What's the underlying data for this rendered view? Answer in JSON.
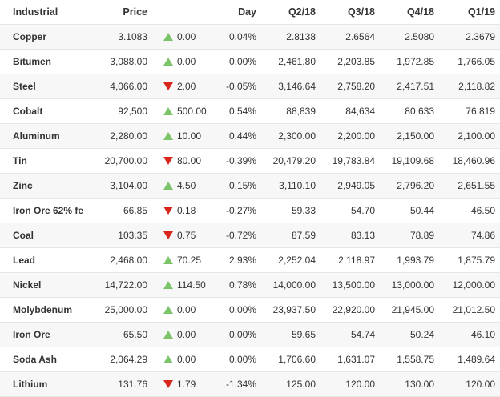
{
  "colors": {
    "up": "#7cc46a",
    "down": "#d9261c",
    "stripe": "#f7f7f7"
  },
  "headers": {
    "name": "Industrial",
    "price": "Price",
    "change": "",
    "day": "Day",
    "q1": "Q2/18",
    "q2": "Q3/18",
    "q3": "Q4/18",
    "q4": "Q1/19"
  },
  "rows": [
    {
      "name": "Copper",
      "price": "3.1083",
      "dir": "up",
      "change": "0.00",
      "day": "0.04%",
      "q1": "2.8138",
      "q2": "2.6564",
      "q3": "2.5080",
      "q4": "2.3679"
    },
    {
      "name": "Bitumen",
      "price": "3,088.00",
      "dir": "up",
      "change": "0.00",
      "day": "0.00%",
      "q1": "2,461.80",
      "q2": "2,203.85",
      "q3": "1,972.85",
      "q4": "1,766.05"
    },
    {
      "name": "Steel",
      "price": "4,066.00",
      "dir": "down",
      "change": "2.00",
      "day": "-0.05%",
      "q1": "3,146.64",
      "q2": "2,758.20",
      "q3": "2,417.51",
      "q4": "2,118.82"
    },
    {
      "name": "Cobalt",
      "price": "92,500",
      "dir": "up",
      "change": "500.00",
      "day": "0.54%",
      "q1": "88,839",
      "q2": "84,634",
      "q3": "80,633",
      "q4": "76,819"
    },
    {
      "name": "Aluminum",
      "price": "2,280.00",
      "dir": "up",
      "change": "10.00",
      "day": "0.44%",
      "q1": "2,300.00",
      "q2": "2,200.00",
      "q3": "2,150.00",
      "q4": "2,100.00"
    },
    {
      "name": "Tin",
      "price": "20,700.00",
      "dir": "down",
      "change": "80.00",
      "day": "-0.39%",
      "q1": "20,479.20",
      "q2": "19,783.84",
      "q3": "19,109.68",
      "q4": "18,460.96"
    },
    {
      "name": "Zinc",
      "price": "3,104.00",
      "dir": "up",
      "change": "4.50",
      "day": "0.15%",
      "q1": "3,110.10",
      "q2": "2,949.05",
      "q3": "2,796.20",
      "q4": "2,651.55"
    },
    {
      "name": "Iron Ore 62% fe",
      "price": "66.85",
      "dir": "down",
      "change": "0.18",
      "day": "-0.27%",
      "q1": "59.33",
      "q2": "54.70",
      "q3": "50.44",
      "q4": "46.50"
    },
    {
      "name": "Coal",
      "price": "103.35",
      "dir": "down",
      "change": "0.75",
      "day": "-0.72%",
      "q1": "87.59",
      "q2": "83.13",
      "q3": "78.89",
      "q4": "74.86"
    },
    {
      "name": "Lead",
      "price": "2,468.00",
      "dir": "up",
      "change": "70.25",
      "day": "2.93%",
      "q1": "2,252.04",
      "q2": "2,118.97",
      "q3": "1,993.79",
      "q4": "1,875.79"
    },
    {
      "name": "Nickel",
      "price": "14,722.00",
      "dir": "up",
      "change": "114.50",
      "day": "0.78%",
      "q1": "14,000.00",
      "q2": "13,500.00",
      "q3": "13,000.00",
      "q4": "12,000.00"
    },
    {
      "name": "Molybdenum",
      "price": "25,000.00",
      "dir": "up",
      "change": "0.00",
      "day": "0.00%",
      "q1": "23,937.50",
      "q2": "22,920.00",
      "q3": "21,945.00",
      "q4": "21,012.50"
    },
    {
      "name": "Iron Ore",
      "price": "65.50",
      "dir": "up",
      "change": "0.00",
      "day": "0.00%",
      "q1": "59.65",
      "q2": "54.74",
      "q3": "50.24",
      "q4": "46.10"
    },
    {
      "name": "Soda Ash",
      "price": "2,064.29",
      "dir": "up",
      "change": "0.00",
      "day": "0.00%",
      "q1": "1,706.60",
      "q2": "1,631.07",
      "q3": "1,558.75",
      "q4": "1,489.64"
    },
    {
      "name": "Lithium",
      "price": "131.76",
      "dir": "down",
      "change": "1.79",
      "day": "-1.34%",
      "q1": "125.00",
      "q2": "120.00",
      "q3": "130.00",
      "q4": "120.00"
    }
  ]
}
